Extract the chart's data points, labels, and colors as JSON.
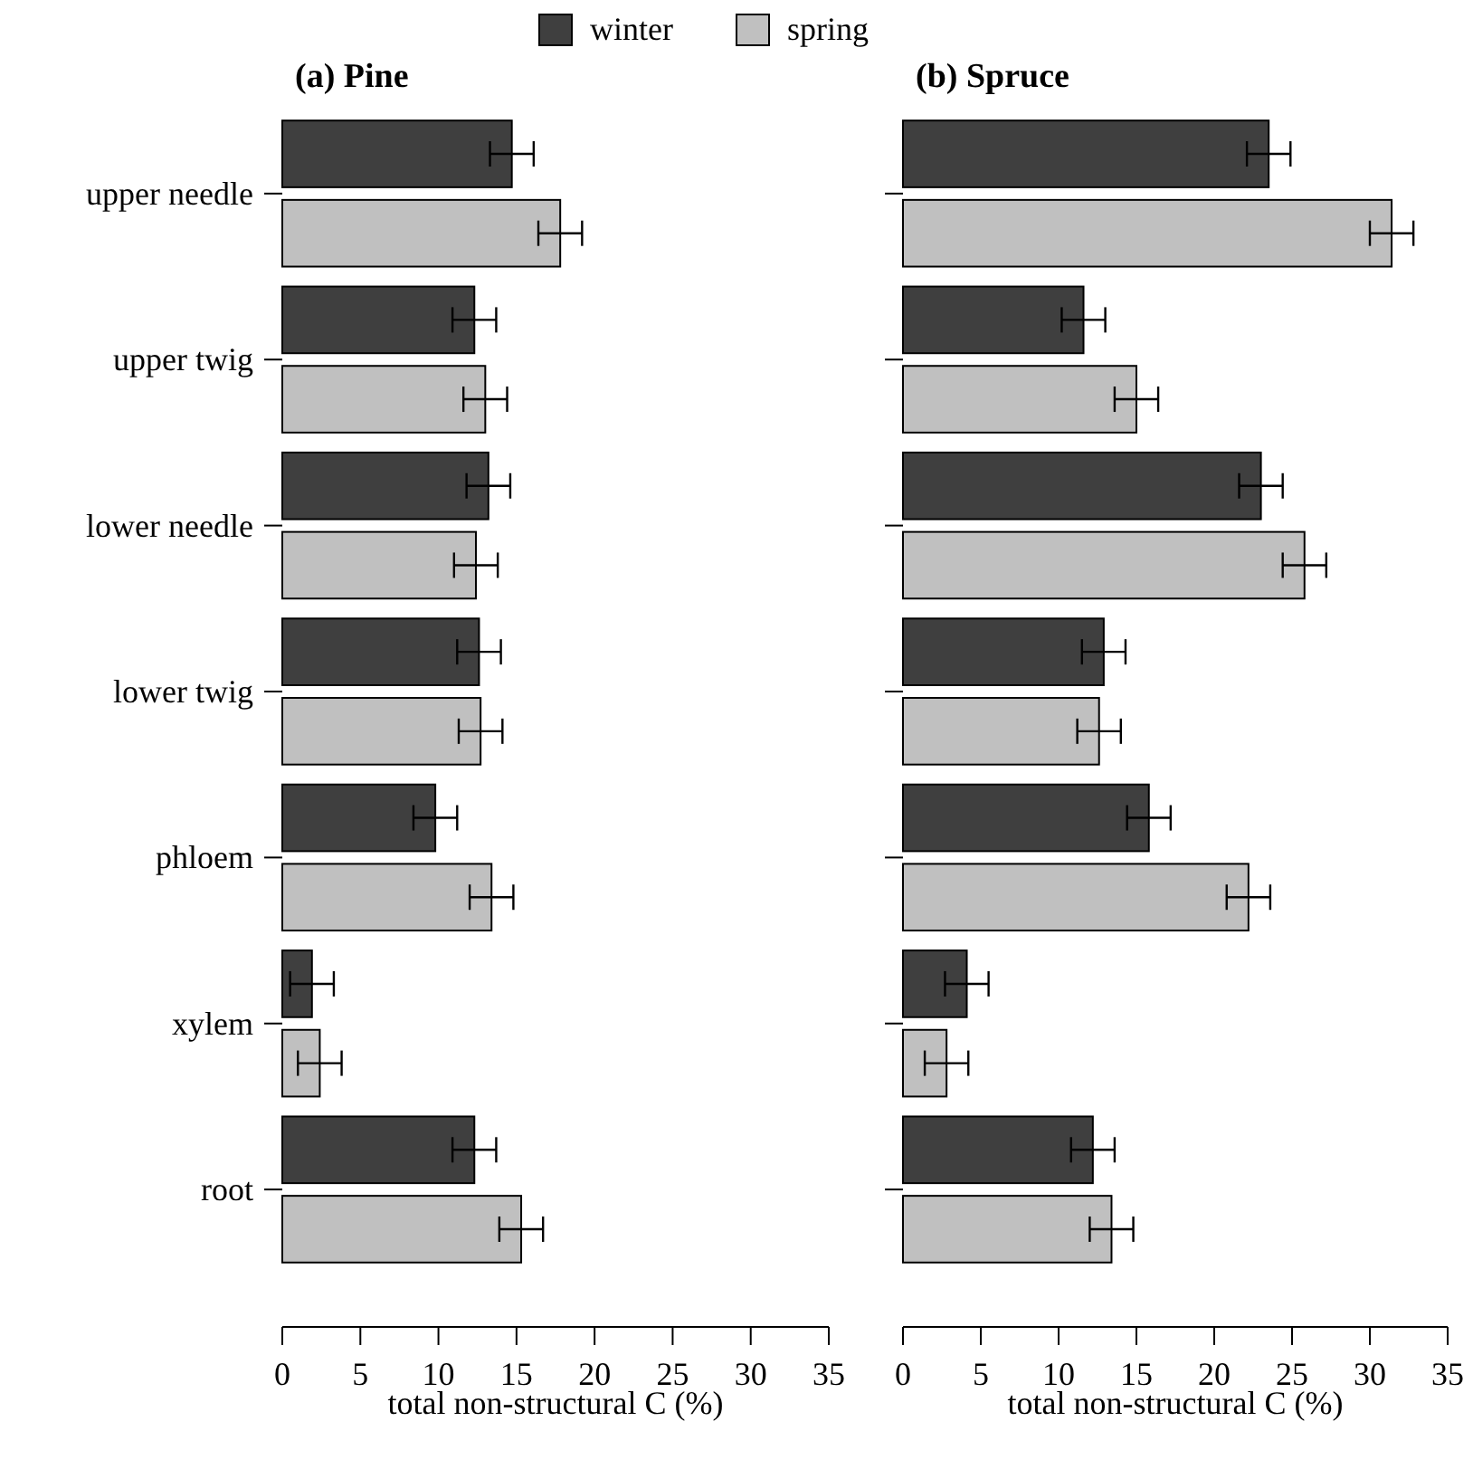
{
  "chart_data": [
    {
      "type": "bar",
      "orientation": "horizontal",
      "title": "(a) Pine",
      "xlabel": "total non-structural C (%)",
      "categories": [
        "upper needle",
        "upper twig",
        "lower needle",
        "lower twig",
        "phloem",
        "xylem",
        "root"
      ],
      "xlim": [
        0,
        35
      ],
      "xticks": [
        0,
        5,
        10,
        15,
        20,
        25,
        30,
        35
      ],
      "legend": "top",
      "series": [
        {
          "name": "winter",
          "color": "#3f3f3f",
          "values": [
            14.7,
            12.3,
            13.2,
            12.6,
            9.8,
            1.9,
            12.3
          ],
          "errors": [
            1.4,
            1.4,
            1.4,
            1.4,
            1.4,
            1.4,
            1.4
          ]
        },
        {
          "name": "spring",
          "color": "#c0c0c0",
          "values": [
            17.8,
            13.0,
            12.4,
            12.7,
            13.4,
            2.4,
            15.3
          ],
          "errors": [
            1.4,
            1.4,
            1.4,
            1.4,
            1.4,
            1.4,
            1.4
          ]
        }
      ]
    },
    {
      "type": "bar",
      "orientation": "horizontal",
      "title": "(b) Spruce",
      "xlabel": "total non-structural C (%)",
      "categories": [
        null,
        null,
        null,
        null,
        null,
        null,
        null
      ],
      "xlim": [
        0,
        35
      ],
      "xticks": [
        0,
        5,
        10,
        15,
        20,
        25,
        30,
        35
      ],
      "tick_labels": "x",
      "series": [
        {
          "color": "#3f3f3f",
          "values": [
            23.5,
            11.6,
            23.0,
            12.9,
            15.8,
            4.1,
            12.2
          ],
          "errors": [
            1.4,
            1.4,
            1.4,
            1.4,
            1.4,
            1.4,
            1.4
          ]
        },
        {
          "color": "#c0c0c0",
          "values": [
            31.4,
            15.0,
            25.8,
            12.6,
            22.2,
            2.8,
            13.4
          ],
          "errors": [
            1.4,
            1.4,
            1.4,
            1.4,
            1.4,
            1.4,
            1.4
          ]
        }
      ]
    }
  ]
}
